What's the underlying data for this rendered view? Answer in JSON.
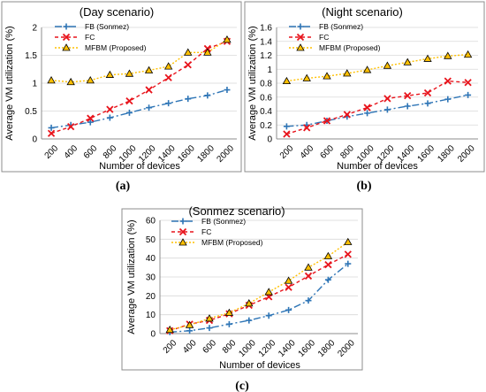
{
  "chart_data": [
    {
      "type": "line",
      "caption": "(a)",
      "title": "(Day scenario)",
      "xlabel": "Number of devices",
      "ylabel": "Average VM utilization (%)",
      "categories": [
        "200",
        "400",
        "600",
        "800",
        "1000",
        "1200",
        "1400",
        "1600",
        "1800",
        "2000"
      ],
      "yticks": [
        "0",
        "0.5",
        "1",
        "1.5",
        "2"
      ],
      "ylim": [
        0,
        2
      ],
      "grid": "horizontal",
      "legend": "top-left",
      "series": [
        {
          "name": "FB (Sonmez)",
          "color": "#2e75b6",
          "dash": "8,3,2,3",
          "marker": "plus",
          "values": [
            0.2,
            0.25,
            0.3,
            0.38,
            0.47,
            0.56,
            0.64,
            0.72,
            0.78,
            0.88
          ]
        },
        {
          "name": "FC",
          "color": "#e8141c",
          "dash": "4,3",
          "marker": "x",
          "values": [
            0.1,
            0.22,
            0.37,
            0.53,
            0.68,
            0.88,
            1.1,
            1.33,
            1.62,
            1.75
          ]
        },
        {
          "name": "MFBM (Proposed)",
          "color": "#ffc000",
          "dash": "2,2",
          "marker": "triangle",
          "values": [
            1.05,
            1.02,
            1.05,
            1.15,
            1.17,
            1.23,
            1.3,
            1.55,
            1.55,
            1.78
          ]
        }
      ]
    },
    {
      "type": "line",
      "caption": "(b)",
      "title": "(Night scenario)",
      "xlabel": "Number of devices",
      "ylabel": "Average VM utilization (%)",
      "categories": [
        "200",
        "400",
        "600",
        "800",
        "1000",
        "1200",
        "1400",
        "1600",
        "1800",
        "2000"
      ],
      "yticks": [
        "0",
        "0.2",
        "0.4",
        "0.6",
        "0.8",
        "1",
        "1.2",
        "1.4",
        "1.6"
      ],
      "ylim": [
        0,
        1.6
      ],
      "grid": "horizontal",
      "legend": "top-left",
      "series": [
        {
          "name": "FB (Sonmez)",
          "color": "#2e75b6",
          "dash": "8,3,2,3",
          "marker": "plus",
          "values": [
            0.18,
            0.2,
            0.26,
            0.32,
            0.37,
            0.42,
            0.47,
            0.51,
            0.57,
            0.63
          ]
        },
        {
          "name": "FC",
          "color": "#e8141c",
          "dash": "4,3",
          "marker": "x",
          "values": [
            0.07,
            0.16,
            0.26,
            0.35,
            0.45,
            0.58,
            0.62,
            0.66,
            0.83,
            0.81
          ]
        },
        {
          "name": "MFBM (Proposed)",
          "color": "#ffc000",
          "dash": "2,2",
          "marker": "triangle",
          "values": [
            0.83,
            0.87,
            0.9,
            0.94,
            0.99,
            1.05,
            1.1,
            1.15,
            1.19,
            1.21
          ]
        }
      ]
    },
    {
      "type": "line",
      "caption": "(c)",
      "title": "(Sonmez scenario)",
      "xlabel": "Number of devices",
      "ylabel": "Average VM utilization (%)",
      "categories": [
        "200",
        "400",
        "600",
        "800",
        "1000",
        "1200",
        "1400",
        "1600",
        "1800",
        "2000"
      ],
      "yticks": [
        "0",
        "10",
        "20",
        "30",
        "40",
        "50",
        "60"
      ],
      "ylim": [
        0,
        60
      ],
      "grid": "horizontal",
      "legend": "top-left",
      "series": [
        {
          "name": "FB (Sonmez)",
          "color": "#2e75b6",
          "dash": "8,3,2,3",
          "marker": "plus",
          "values": [
            0.8,
            1.5,
            3,
            5,
            7,
            9.5,
            12.5,
            17.5,
            28.5,
            37
          ]
        },
        {
          "name": "FC",
          "color": "#e8141c",
          "dash": "4,3",
          "marker": "x",
          "values": [
            1.5,
            5,
            7,
            10.5,
            15,
            19.5,
            24.5,
            30.5,
            36.5,
            42
          ]
        },
        {
          "name": "MFBM (Proposed)",
          "color": "#ffc000",
          "dash": "2,2",
          "marker": "triangle",
          "values": [
            2,
            4.5,
            8,
            11,
            16,
            22,
            28,
            35,
            41,
            48.5
          ]
        }
      ]
    }
  ]
}
